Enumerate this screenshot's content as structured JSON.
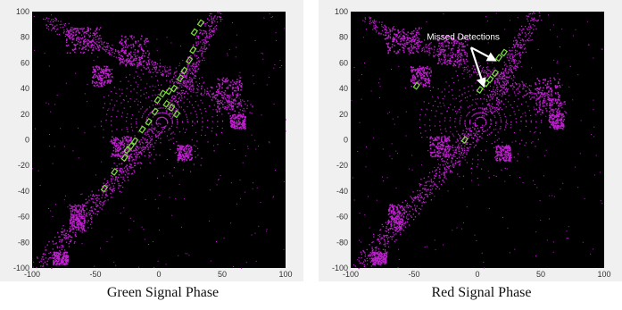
{
  "colors": {
    "background": "#000000",
    "frame": "#f0f0f0",
    "lidar_points": "#c020d0",
    "detections": "#7ae03a",
    "annotation": "#ffffff"
  },
  "panels": [
    {
      "caption": "Green Signal Phase",
      "x_ticks": [
        "-100",
        "-50",
        "0",
        "50",
        "100"
      ],
      "y_ticks": [
        "100",
        "80",
        "60",
        "40",
        "20",
        "0",
        "-20",
        "-40",
        "-60",
        "-80",
        "-100"
      ],
      "annotation": ""
    },
    {
      "caption": "Red Signal Phase",
      "x_ticks": [
        "-100",
        "-50",
        "0",
        "50",
        "100"
      ],
      "y_ticks": [
        "100",
        "80",
        "60",
        "40",
        "20",
        "0",
        "-20",
        "-40",
        "-60",
        "-80",
        "-100"
      ],
      "annotation": "Missed Detections"
    }
  ]
}
